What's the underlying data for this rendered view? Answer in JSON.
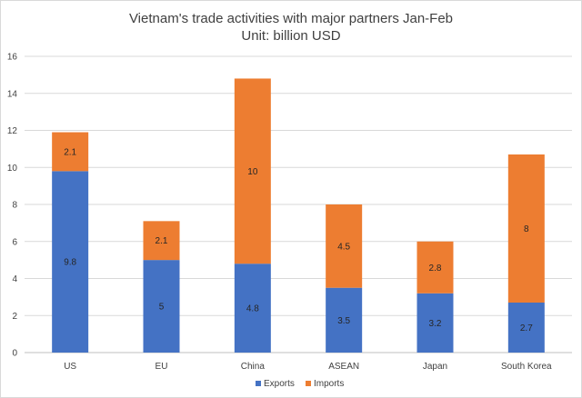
{
  "chart_data": {
    "type": "bar",
    "stacked": true,
    "title": "Vietnam's trade activities with major partners Jan-Feb",
    "subtitle": "Unit: billion USD",
    "categories": [
      "US",
      "EU",
      "China",
      "ASEAN",
      "Japan",
      "South Korea"
    ],
    "series": [
      {
        "name": "Exports",
        "color": "#4472c4",
        "values": [
          9.8,
          5,
          4.8,
          3.5,
          3.2,
          2.7
        ],
        "labels": [
          "9.8",
          "5",
          "4.8",
          "3.5",
          "3.2",
          "2.7"
        ]
      },
      {
        "name": "Imports",
        "color": "#ed7d31",
        "values": [
          2.1,
          2.1,
          10,
          4.5,
          2.8,
          8
        ],
        "labels": [
          "2.1",
          "2.1",
          "10",
          "4.5",
          "2.8",
          "8"
        ]
      }
    ],
    "ylim": [
      0,
      16
    ],
    "yticks": [
      "0",
      "2",
      "4",
      "6",
      "8",
      "10",
      "12",
      "14",
      "16"
    ],
    "grid": true,
    "legend_position": "bottom",
    "colors": {
      "gridline": "#d9d9d9",
      "axis": "#bfbfbf"
    }
  }
}
